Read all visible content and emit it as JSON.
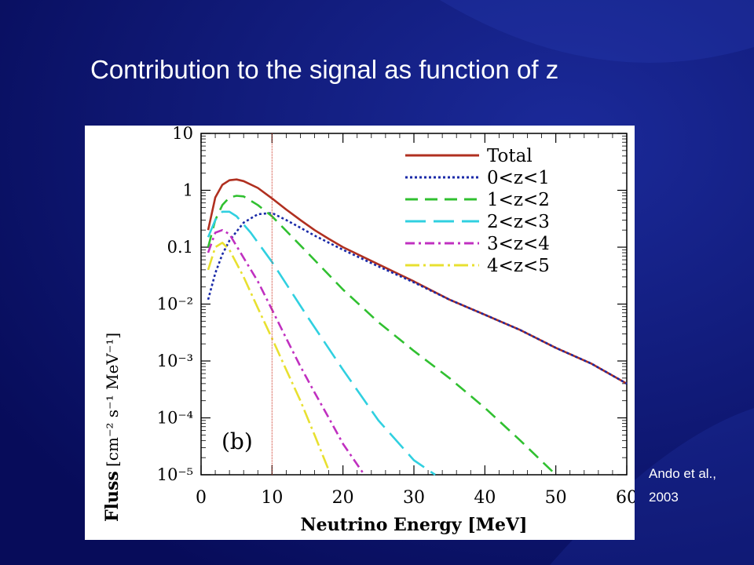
{
  "slide": {
    "title": "Contribution to the signal as function of z",
    "citation_line1": "Ando et al.,",
    "citation_line2": "2003",
    "background_color": "#0b1170"
  },
  "chart_data": {
    "type": "line",
    "title": "",
    "xlabel": "Neutrino Energy [MeV]",
    "ylabel_prefix": "Fluss",
    "ylabel_units": "[cm⁻² s⁻¹ MeV⁻¹]",
    "panel_label": "(b)",
    "xlim": [
      0,
      60
    ],
    "ylim": [
      1e-05,
      10
    ],
    "y_scale": "log",
    "x_ticks": [
      "0",
      "10",
      "20",
      "30",
      "40",
      "50",
      "60"
    ],
    "y_ticks": [
      {
        "value": 10,
        "label": "10"
      },
      {
        "value": 1,
        "label": "1"
      },
      {
        "value": 0.1,
        "label": "0.1"
      },
      {
        "value": 0.01,
        "label": "10⁻²"
      },
      {
        "value": 0.001,
        "label": "10⁻³"
      },
      {
        "value": 0.0001,
        "label": "10⁻⁴"
      },
      {
        "value": 1e-05,
        "label": "10⁻⁵"
      }
    ],
    "legend_position": "top-right",
    "marker_line_x": 10,
    "series": [
      {
        "name": "Total",
        "color": "#b03020",
        "dash": "none",
        "x": [
          1,
          2,
          3,
          4,
          5,
          6,
          8,
          10,
          12,
          14,
          16,
          18,
          20,
          25,
          30,
          35,
          40,
          45,
          50,
          55,
          60
        ],
        "y": [
          0.2,
          0.75,
          1.25,
          1.5,
          1.55,
          1.45,
          1.1,
          0.72,
          0.46,
          0.3,
          0.2,
          0.14,
          0.1,
          0.05,
          0.025,
          0.012,
          0.0065,
          0.0035,
          0.0017,
          0.0009,
          0.0004
        ]
      },
      {
        "name": "0<z<1",
        "color": "#1a2aa8",
        "dash": "3,3",
        "x": [
          1,
          2,
          3,
          4,
          6,
          8,
          10,
          12,
          14,
          16,
          18,
          20,
          25,
          30,
          35,
          40,
          45,
          50,
          55,
          60
        ],
        "y": [
          0.012,
          0.035,
          0.075,
          0.13,
          0.27,
          0.38,
          0.4,
          0.3,
          0.22,
          0.16,
          0.12,
          0.09,
          0.046,
          0.024,
          0.012,
          0.0065,
          0.0035,
          0.0017,
          0.0009,
          0.0004
        ]
      },
      {
        "name": "1<z<2",
        "color": "#30c030",
        "dash": "16,9",
        "x": [
          1,
          2,
          3,
          4,
          5,
          6,
          8,
          10,
          15,
          20,
          25,
          30,
          35,
          40,
          45,
          50
        ],
        "y": [
          0.1,
          0.3,
          0.55,
          0.75,
          0.8,
          0.78,
          0.55,
          0.35,
          0.08,
          0.018,
          0.0048,
          0.0015,
          0.0005,
          0.00015,
          4e-05,
          1e-05
        ]
      },
      {
        "name": "2<z<3",
        "color": "#30d0e0",
        "dash": "26,10",
        "x": [
          1,
          2,
          3,
          4,
          5,
          7,
          10,
          15,
          20,
          25,
          30,
          33
        ],
        "y": [
          0.15,
          0.3,
          0.42,
          0.42,
          0.35,
          0.18,
          0.055,
          0.006,
          0.0007,
          9e-05,
          1.8e-05,
          1e-05
        ]
      },
      {
        "name": "3<z<4",
        "color": "#c030c0",
        "dash": "12,5,3,5",
        "x": [
          1,
          2,
          3,
          4,
          6,
          8,
          10,
          12,
          14,
          16,
          18,
          20,
          23
        ],
        "y": [
          0.08,
          0.18,
          0.2,
          0.17,
          0.065,
          0.025,
          0.008,
          0.0025,
          0.0008,
          0.00028,
          0.0001,
          3.5e-05,
          1e-05
        ]
      },
      {
        "name": "4<z<5",
        "color": "#e8e030",
        "dash": "18,5,3,5",
        "x": [
          1,
          2,
          3,
          4,
          6,
          8,
          10,
          12,
          14,
          16,
          18
        ],
        "y": [
          0.04,
          0.1,
          0.12,
          0.09,
          0.03,
          0.0085,
          0.0025,
          0.0007,
          0.0002,
          5e-05,
          1.2e-05
        ]
      }
    ]
  }
}
